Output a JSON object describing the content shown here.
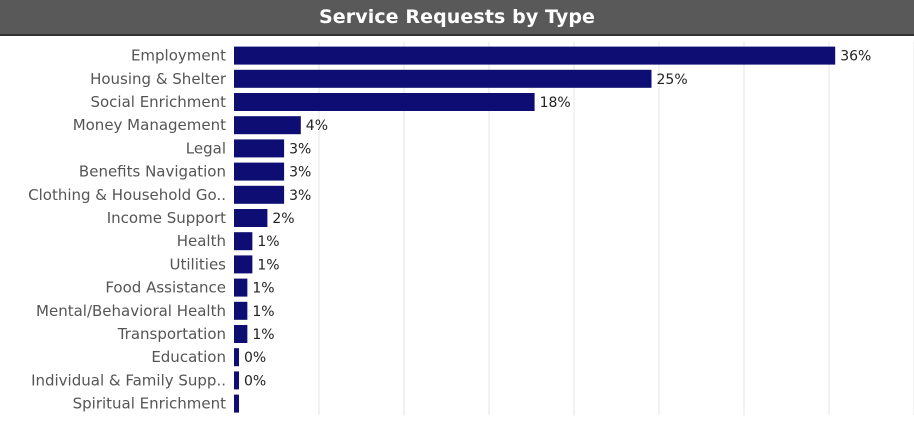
{
  "header": {
    "title": "Service Requests by Type"
  },
  "colors": {
    "bar": "#0d0d73",
    "header_bg": "#595959",
    "gridline": "#e6e6e6"
  },
  "chart_data": {
    "type": "bar",
    "orientation": "horizontal",
    "title": "Service Requests by Type",
    "xlabel": "",
    "ylabel": "",
    "xlim": [
      0,
      40
    ],
    "grid": true,
    "categories": [
      "Employment",
      "Housing & Shelter",
      "Social Enrichment",
      "Money Management",
      "Legal",
      "Benefits Navigation",
      "Clothing & Household Go..",
      "Income Support",
      "Health",
      "Utilities",
      "Food Assistance",
      "Mental/Behavioral Health",
      "Transportation",
      "Education",
      "Individual & Family Supp..",
      "Spiritual Enrichment"
    ],
    "values": [
      36,
      25,
      18,
      4,
      3,
      3,
      3,
      2,
      1.1,
      1.1,
      0.8,
      0.8,
      0.8,
      0.3,
      0.3,
      0.3
    ],
    "value_labels": [
      "36%",
      "25%",
      "18%",
      "4%",
      "3%",
      "3%",
      "3%",
      "2%",
      "1%",
      "1%",
      "1%",
      "1%",
      "1%",
      "0%",
      "0%",
      ""
    ]
  }
}
